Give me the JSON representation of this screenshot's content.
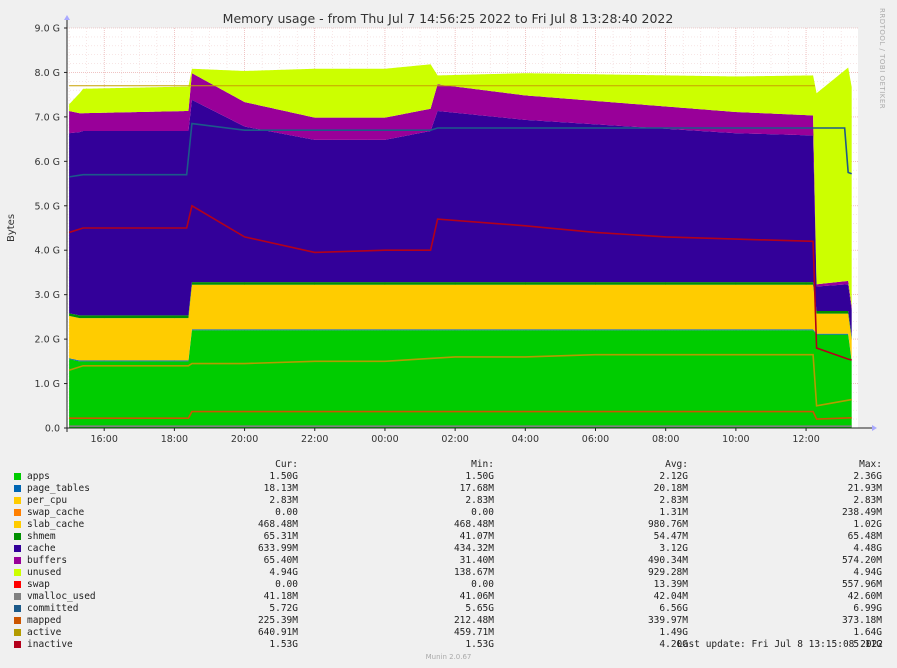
{
  "chart_data": {
    "type": "area",
    "title": "Memory usage - from Thu Jul  7 14:56:25 2022 to Fri Jul  8 13:28:40 2022",
    "ylabel": "Bytes",
    "xlabel": "",
    "ylim": [
      0,
      9
    ],
    "yunit": "G",
    "y_ticks": [
      "0.0",
      "1.0 G",
      "2.0 G",
      "3.0 G",
      "4.0 G",
      "5.0 G",
      "6.0 G",
      "7.0 G",
      "8.0 G",
      "9.0 G"
    ],
    "x_ticks": [
      "16:00",
      "18:00",
      "20:00",
      "22:00",
      "00:00",
      "02:00",
      "04:00",
      "06:00",
      "08:00",
      "10:00",
      "12:00"
    ],
    "x_tick_hours": [
      16,
      18,
      20,
      22,
      24,
      26,
      28,
      30,
      32,
      34,
      36
    ],
    "x_range_hours": [
      14.94,
      37.48
    ],
    "grid": true,
    "stack_order": [
      "apps",
      "page_tables",
      "per_cpu",
      "swap_cache",
      "slab_cache",
      "shmem",
      "cache",
      "buffers",
      "unused",
      "swap"
    ],
    "series": [
      {
        "name": "apps",
        "color": "#00cc00",
        "x": [
          15.0,
          15.3,
          18.4,
          18.5,
          36.2,
          36.3,
          37.2,
          37.3
        ],
        "values": [
          1.55,
          1.5,
          1.5,
          2.2,
          2.2,
          2.1,
          2.1,
          1.5
        ]
      },
      {
        "name": "page_tables",
        "color": "#0066b3",
        "x": [
          15.0,
          37.3
        ],
        "values": [
          0.02,
          0.02
        ]
      },
      {
        "name": "per_cpu",
        "color": "#ff8000",
        "x": [
          15.0,
          37.3
        ],
        "values": [
          0.003,
          0.003
        ]
      },
      {
        "name": "swap_cache",
        "color": "#ffcc00",
        "x": [
          15.0,
          37.3
        ],
        "values": [
          0.0,
          0.0
        ]
      },
      {
        "name": "slab_cache",
        "color": "#ffcc00",
        "x": [
          15.0,
          18.4,
          18.5,
          36.2,
          36.3,
          37.2,
          37.3
        ],
        "values": [
          0.95,
          0.95,
          1.0,
          1.0,
          0.45,
          0.45,
          0.47
        ]
      },
      {
        "name": "shmem",
        "color": "#008f00",
        "x": [
          15.0,
          37.3
        ],
        "values": [
          0.06,
          0.06
        ]
      },
      {
        "name": "cache",
        "color": "#330099",
        "x": [
          15.0,
          15.4,
          18.4,
          18.5,
          20.0,
          22.0,
          24.0,
          25.3,
          25.5,
          28.0,
          30.0,
          32.0,
          34.0,
          36.2,
          36.3,
          37.2,
          37.3
        ],
        "values": [
          4.05,
          4.15,
          4.15,
          4.1,
          3.5,
          3.2,
          3.2,
          3.4,
          3.85,
          3.65,
          3.55,
          3.45,
          3.35,
          3.3,
          0.55,
          0.6,
          0.6
        ]
      },
      {
        "name": "buffers",
        "color": "#990099",
        "x": [
          15.0,
          15.4,
          18.4,
          18.5,
          20.0,
          22.0,
          24.0,
          25.3,
          25.5,
          28.0,
          36.2,
          36.3,
          37.3
        ],
        "values": [
          0.5,
          0.4,
          0.45,
          0.6,
          0.55,
          0.5,
          0.5,
          0.5,
          0.6,
          0.55,
          0.45,
          0.05,
          0.08
        ]
      },
      {
        "name": "unused",
        "color": "#ccff00",
        "x": [
          15.0,
          15.4,
          18.4,
          18.5,
          20.0,
          22.0,
          24.0,
          25.3,
          25.5,
          28.0,
          30.0,
          32.0,
          34.0,
          36.2,
          36.3,
          37.2,
          37.3
        ],
        "values": [
          0.15,
          0.55,
          0.55,
          0.1,
          0.7,
          1.1,
          1.1,
          1.0,
          0.2,
          0.5,
          0.6,
          0.7,
          0.8,
          0.9,
          4.3,
          4.8,
          4.94
        ]
      },
      {
        "name": "swap",
        "color": "#ff0000",
        "x": [
          15.0,
          37.3
        ],
        "values": [
          0.0,
          0.0
        ]
      }
    ],
    "lines": [
      {
        "name": "vmalloc_used",
        "color": "#808080",
        "x": [
          15.0,
          37.3
        ],
        "values": [
          0.04,
          0.04
        ]
      },
      {
        "name": "committed",
        "color": "#1c5a8a",
        "x": [
          15.0,
          15.4,
          18.35,
          18.5,
          20.0,
          24.0,
          25.3,
          25.5,
          36.2,
          36.3,
          37.1,
          37.2,
          37.3
        ],
        "values": [
          5.65,
          5.7,
          5.7,
          6.85,
          6.7,
          6.7,
          6.7,
          6.75,
          6.75,
          6.75,
          6.75,
          5.75,
          5.72
        ]
      },
      {
        "name": "mapped",
        "color": "#cc5500",
        "x": [
          15.0,
          18.4,
          18.5,
          36.2,
          36.3,
          37.3
        ],
        "values": [
          0.22,
          0.22,
          0.37,
          0.37,
          0.2,
          0.23
        ]
      },
      {
        "name": "active",
        "color": "#b39b00",
        "x": [
          15.0,
          15.4,
          18.4,
          18.5,
          20.0,
          22.0,
          24.0,
          25.0,
          26.0,
          28.0,
          30.0,
          36.2,
          36.3,
          37.3
        ],
        "values": [
          1.3,
          1.4,
          1.4,
          1.45,
          1.45,
          1.5,
          1.5,
          1.55,
          1.6,
          1.6,
          1.65,
          1.65,
          0.5,
          0.64
        ]
      },
      {
        "name": "inactive",
        "color": "#b3001b",
        "x": [
          15.0,
          15.4,
          18.35,
          18.5,
          20.0,
          22.0,
          24.0,
          25.3,
          25.5,
          28.0,
          30.0,
          32.0,
          34.0,
          36.2,
          36.3,
          37.2,
          37.3
        ],
        "values": [
          4.4,
          4.5,
          4.5,
          5.0,
          4.3,
          3.95,
          4.0,
          4.0,
          4.7,
          4.55,
          4.4,
          4.3,
          4.25,
          4.2,
          1.8,
          1.55,
          1.53
        ]
      },
      {
        "name": "total",
        "color": "#c8a000",
        "x": [
          15.0,
          36.25
        ],
        "values": [
          7.7,
          7.7
        ]
      }
    ],
    "legend_headers": {
      "cur": "Cur:",
      "min": "Min:",
      "avg": "Avg:",
      "max": "Max:"
    },
    "legend": [
      {
        "name": "apps",
        "color": "#00cc00",
        "cur": "1.50G",
        "min": "1.50G",
        "avg": "2.12G",
        "max": "2.36G"
      },
      {
        "name": "page_tables",
        "color": "#0066b3",
        "cur": "18.13M",
        "min": "17.68M",
        "avg": "20.18M",
        "max": "21.93M"
      },
      {
        "name": "per_cpu",
        "color": "#ffcc00",
        "cur": "2.83M",
        "min": "2.83M",
        "avg": "2.83M",
        "max": "2.83M"
      },
      {
        "name": "swap_cache",
        "color": "#ff8000",
        "cur": "0.00",
        "min": "0.00",
        "avg": "1.31M",
        "max": "238.49M"
      },
      {
        "name": "slab_cache",
        "color": "#ffcc00",
        "cur": "468.48M",
        "min": "468.48M",
        "avg": "980.76M",
        "max": "1.02G"
      },
      {
        "name": "shmem",
        "color": "#008f00",
        "cur": "65.31M",
        "min": "41.07M",
        "avg": "54.47M",
        "max": "65.48M"
      },
      {
        "name": "cache",
        "color": "#330099",
        "cur": "633.99M",
        "min": "434.32M",
        "avg": "3.12G",
        "max": "4.48G"
      },
      {
        "name": "buffers",
        "color": "#990099",
        "cur": "65.40M",
        "min": "31.40M",
        "avg": "490.34M",
        "max": "574.20M"
      },
      {
        "name": "unused",
        "color": "#ccff00",
        "cur": "4.94G",
        "min": "138.67M",
        "avg": "929.28M",
        "max": "4.94G"
      },
      {
        "name": "swap",
        "color": "#ff0000",
        "cur": "0.00",
        "min": "0.00",
        "avg": "13.39M",
        "max": "557.96M"
      },
      {
        "name": "vmalloc_used",
        "color": "#808080",
        "cur": "41.18M",
        "min": "41.06M",
        "avg": "42.04M",
        "max": "42.60M"
      },
      {
        "name": "committed",
        "color": "#1c5a8a",
        "cur": "5.72G",
        "min": "5.65G",
        "avg": "6.56G",
        "max": "6.99G"
      },
      {
        "name": "mapped",
        "color": "#cc5500",
        "cur": "225.39M",
        "min": "212.48M",
        "avg": "339.97M",
        "max": "373.18M"
      },
      {
        "name": "active",
        "color": "#b39b00",
        "cur": "640.91M",
        "min": "459.71M",
        "avg": "1.49G",
        "max": "1.64G"
      },
      {
        "name": "inactive",
        "color": "#b3001b",
        "cur": "1.53G",
        "min": "1.53G",
        "avg": "4.20G",
        "max": "5.11G"
      }
    ]
  },
  "last_update": "Last update: Fri Jul  8 13:15:08 2022",
  "footer": "Munin 2.0.67",
  "side_label": "RRDTOOL / TOBI OETIKER"
}
